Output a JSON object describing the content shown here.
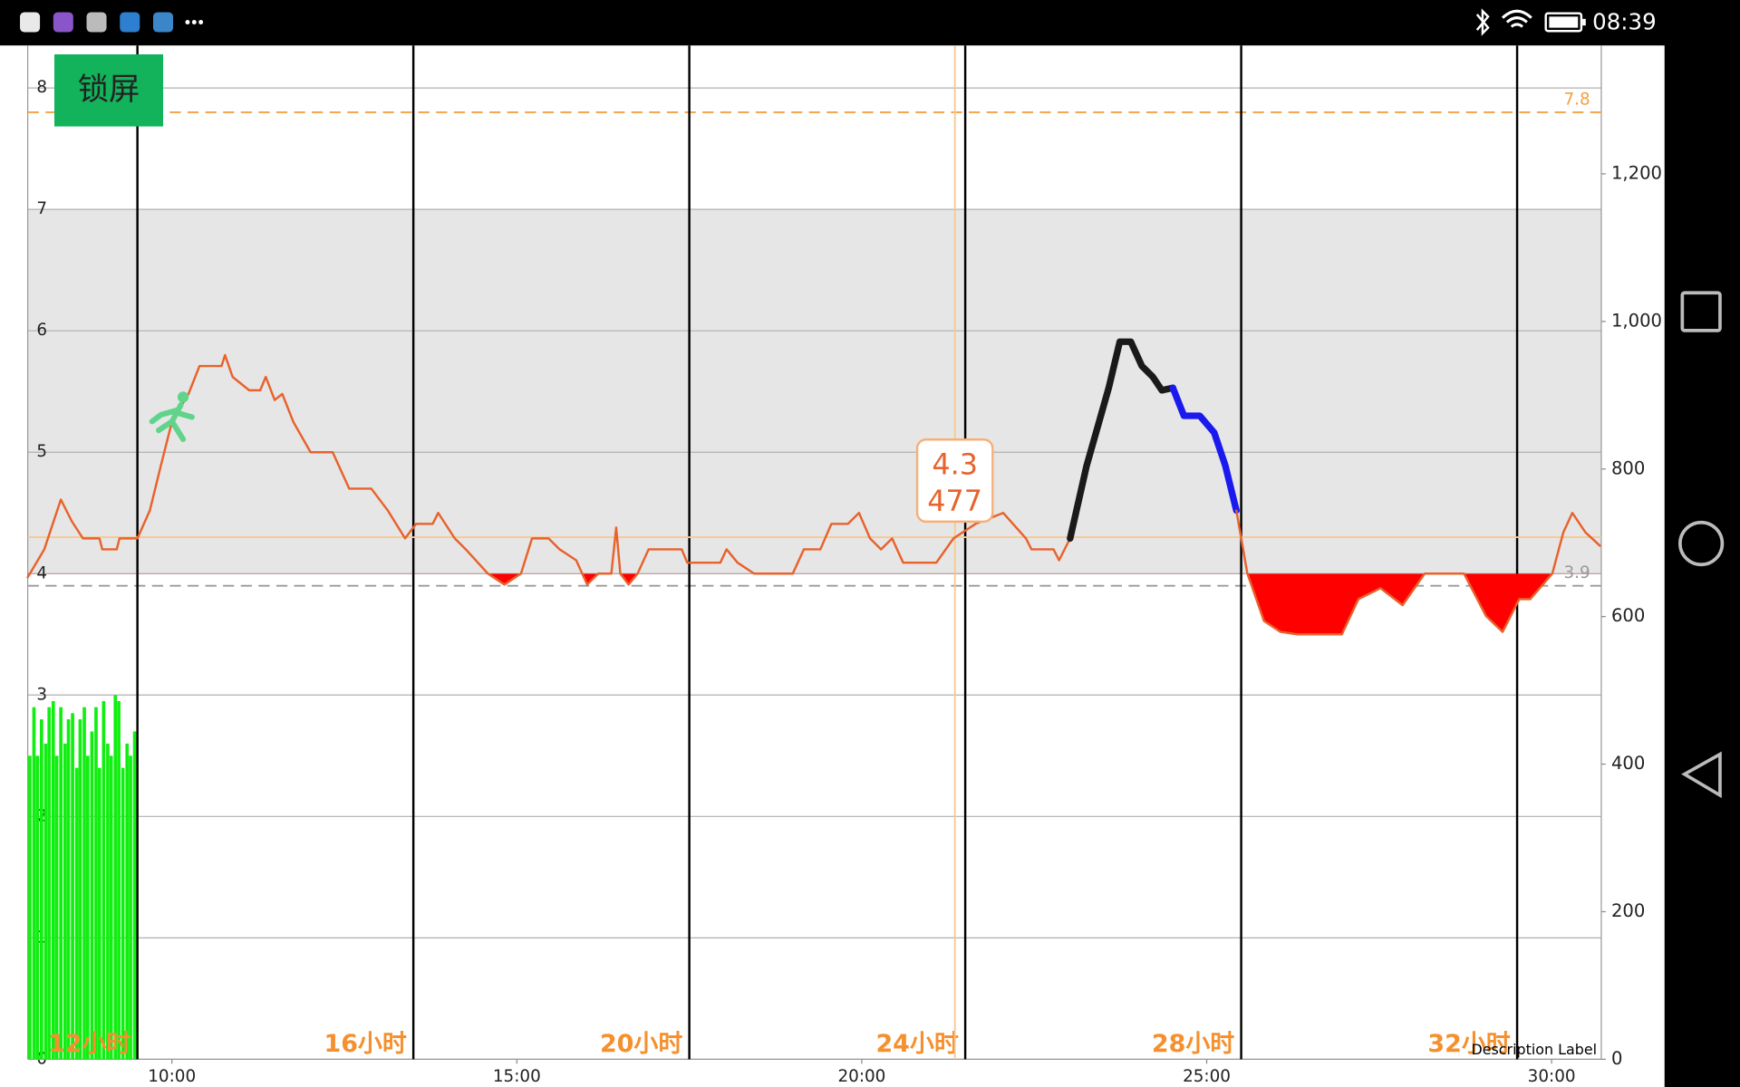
{
  "status_bar": {
    "time": "08:39"
  },
  "lock_button": {
    "label": "锁屏"
  },
  "chart_data": {
    "type": "line",
    "xlim": [
      7.91,
      30.72
    ],
    "xticks": [
      {
        "value": 10,
        "label": "10:00"
      },
      {
        "value": 15,
        "label": "15:00"
      },
      {
        "value": 20,
        "label": "20:00"
      },
      {
        "value": 25,
        "label": "25:00"
      },
      {
        "value": 30,
        "label": "30:00"
      }
    ],
    "ylim": [
      0,
      8.35
    ],
    "yticks": [
      0,
      1,
      2,
      3,
      4,
      5,
      6,
      7,
      8
    ],
    "y2lim": [
      0,
      1374
    ],
    "y2ticks": [
      0,
      200,
      400,
      600,
      800,
      {
        "value": 1000,
        "label": "1,000"
      },
      {
        "value": 1200,
        "label": "1,200"
      }
    ],
    "grid": true,
    "target_range": [
      4,
      7
    ],
    "target_color": "#e6e6e6",
    "limit_lines": [
      {
        "value": 7.8,
        "color": "#f5a142"
      },
      {
        "value": 3.9,
        "color": "#9a9a9a"
      }
    ],
    "hour_markers": [
      {
        "value": 9.5,
        "label": "12小时"
      },
      {
        "value": 13.5,
        "label": "16小时"
      },
      {
        "value": 17.5,
        "label": "20小时"
      },
      {
        "value": 21.5,
        "label": "24小时"
      },
      {
        "value": 25.5,
        "label": "28小时"
      },
      {
        "value": 29.5,
        "label": "32小时"
      }
    ],
    "hour_marker_color": "#f5902e",
    "fill_below": 4,
    "fill_color": "#ff0000",
    "series": [
      {
        "color": "#e8622c",
        "width": 2,
        "x": [
          7.91,
          8.15,
          8.39,
          8.55,
          8.71,
          8.95,
          8.99,
          9.2,
          9.24,
          9.5,
          9.68,
          9.84,
          10.0,
          10.24,
          10.4,
          10.72,
          10.77,
          10.88,
          11.12,
          11.28,
          11.36,
          11.49,
          11.6,
          11.76,
          12.01,
          12.33,
          12.57,
          12.89,
          13.13,
          13.38,
          13.54,
          13.78,
          13.86,
          14.1,
          14.26,
          14.58,
          14.82,
          15.06,
          15.22,
          15.46,
          15.62,
          15.86,
          16.02,
          16.18,
          16.37,
          16.44,
          16.5,
          16.62,
          16.75,
          16.91,
          17.39,
          17.47,
          17.95,
          18.04,
          18.2,
          18.44,
          19.0,
          19.16,
          19.4,
          19.56,
          19.8,
          19.96,
          20.12,
          20.28,
          20.44,
          20.6,
          21.08,
          21.33,
          21.65,
          22.05,
          22.38,
          22.46,
          22.78,
          22.86,
          23.02
        ],
        "values": [
          3.97,
          4.2,
          4.61,
          4.43,
          4.29,
          4.29,
          4.2,
          4.2,
          4.29,
          4.29,
          4.52,
          4.89,
          5.25,
          5.48,
          5.71,
          5.71,
          5.8,
          5.62,
          5.51,
          5.51,
          5.62,
          5.43,
          5.48,
          5.25,
          5.0,
          5.0,
          4.7,
          4.7,
          4.52,
          4.29,
          4.41,
          4.41,
          4.5,
          4.29,
          4.2,
          4.0,
          3.91,
          4.0,
          4.29,
          4.29,
          4.2,
          4.11,
          3.91,
          4.0,
          4.0,
          4.38,
          4.0,
          3.91,
          4.0,
          4.2,
          4.2,
          4.09,
          4.09,
          4.2,
          4.09,
          4.0,
          4.0,
          4.2,
          4.2,
          4.41,
          4.41,
          4.5,
          4.29,
          4.2,
          4.29,
          4.09,
          4.09,
          4.29,
          4.41,
          4.5,
          4.29,
          4.2,
          4.2,
          4.11,
          4.29
        ]
      },
      {
        "color": "#1a1a1a",
        "width": 6,
        "x": [
          23.02,
          23.26,
          23.42,
          23.58,
          23.74,
          23.9,
          24.06,
          24.22,
          24.35,
          24.51
        ],
        "values": [
          4.29,
          4.89,
          5.21,
          5.53,
          5.91,
          5.91,
          5.71,
          5.62,
          5.51,
          5.53
        ]
      },
      {
        "color": "#1a1aee",
        "width": 6,
        "x": [
          24.51,
          24.67,
          24.9,
          25.11,
          25.27,
          25.43
        ],
        "values": [
          5.53,
          5.3,
          5.3,
          5.16,
          4.89,
          4.52
        ]
      },
      {
        "color": "#e8622c",
        "width": 2,
        "x": [
          25.43,
          25.59,
          25.83,
          26.07,
          26.31,
          26.96,
          27.2,
          27.52,
          27.84,
          28.16,
          28.73,
          29.05,
          29.29,
          29.53,
          29.69,
          30.01,
          30.17,
          30.3,
          30.49,
          30.7
        ],
        "values": [
          4.52,
          4.0,
          3.61,
          3.52,
          3.5,
          3.5,
          3.79,
          3.88,
          3.74,
          4.0,
          4.0,
          3.65,
          3.52,
          3.79,
          3.79,
          4.0,
          4.34,
          4.5,
          4.34,
          4.23
        ]
      }
    ],
    "bars": {
      "color": "#11ee11",
      "x": [
        7.94,
        8.0,
        8.05,
        8.11,
        8.17,
        8.22,
        8.28,
        8.33,
        8.39,
        8.45,
        8.5,
        8.56,
        8.62,
        8.67,
        8.73,
        8.78,
        8.84,
        8.9,
        8.95,
        9.01,
        9.07,
        9.12,
        9.18,
        9.23,
        9.29,
        9.35,
        9.4,
        9.46
      ],
      "values": [
        2.5,
        2.9,
        2.5,
        2.8,
        2.6,
        2.9,
        2.95,
        2.5,
        2.9,
        2.6,
        2.8,
        2.85,
        2.4,
        2.8,
        2.9,
        2.5,
        2.7,
        2.9,
        2.4,
        2.95,
        2.6,
        2.5,
        3.0,
        2.95,
        2.4,
        2.6,
        2.5,
        2.7
      ]
    },
    "crosshair": {
      "x": 21.35,
      "y": 4.3,
      "color": "#f7c892"
    },
    "tooltip": {
      "value": 4.3,
      "count": 477
    },
    "description": "Description Label"
  }
}
